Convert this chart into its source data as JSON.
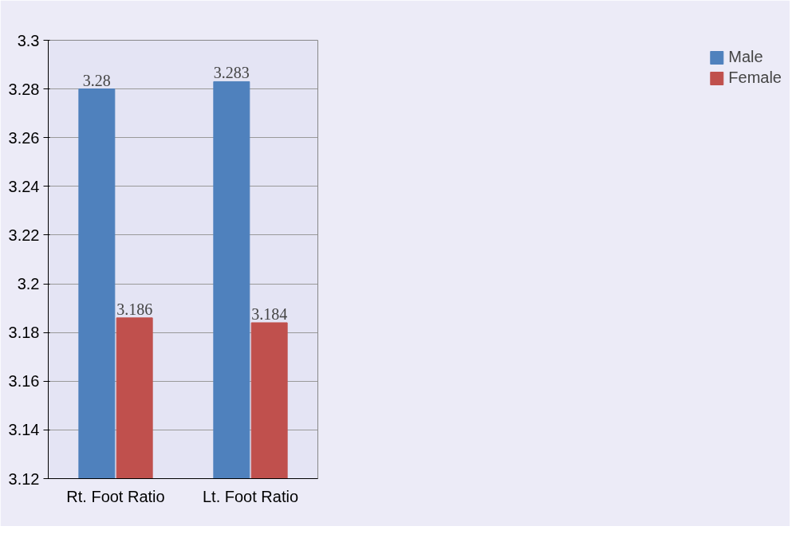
{
  "chart_data": {
    "type": "bar",
    "categories": [
      "Rt. Foot Ratio",
      "Lt. Foot Ratio"
    ],
    "series": [
      {
        "name": "Male",
        "color": "#4f81bd",
        "values": [
          3.28,
          3.283
        ]
      },
      {
        "name": "Female",
        "color": "#c0504d",
        "values": [
          3.186,
          3.184
        ]
      }
    ],
    "ylim": [
      3.12,
      3.3
    ],
    "yticks": [
      3.12,
      3.14,
      3.16,
      3.18,
      3.2,
      3.22,
      3.24,
      3.26,
      3.28,
      3.3
    ],
    "grid": "y",
    "legend": "right",
    "data_labels": true
  }
}
